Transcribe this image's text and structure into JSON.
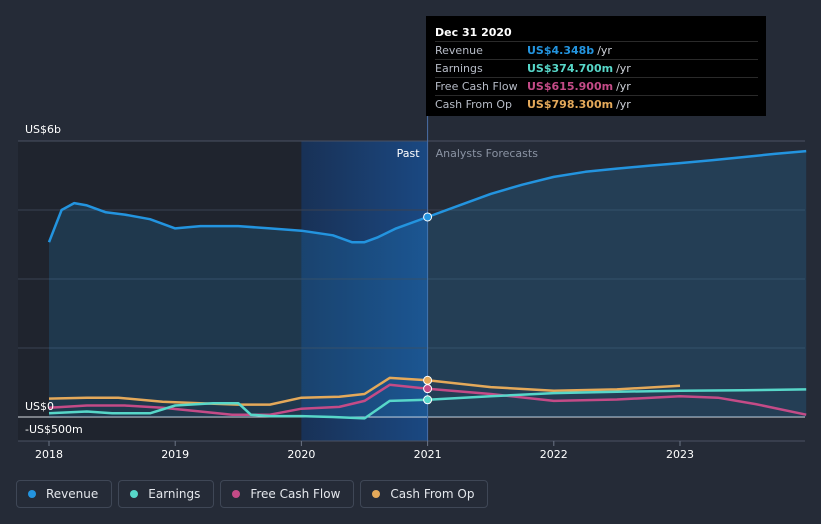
{
  "colors": {
    "revenue": "#2394df",
    "earnings": "#57d7c9",
    "free_cash_flow": "#c44b87",
    "cash_from_op": "#e4a95a"
  },
  "tooltip": {
    "title": "Dec 31 2020",
    "rows": [
      {
        "label": "Revenue",
        "value": "US$4.348b",
        "unit": "/yr",
        "color": "#2394df"
      },
      {
        "label": "Earnings",
        "value": "US$374.700m",
        "unit": "/yr",
        "color": "#57d7c9"
      },
      {
        "label": "Free Cash Flow",
        "value": "US$615.900m",
        "unit": "/yr",
        "color": "#c44b87"
      },
      {
        "label": "Cash From Op",
        "value": "US$798.300m",
        "unit": "/yr",
        "color": "#e4a95a"
      }
    ]
  },
  "legend": {
    "revenue": "Revenue",
    "earnings": "Earnings",
    "free_cash_flow": "Free Cash Flow",
    "cash_from_op": "Cash From Op"
  },
  "chart_data": {
    "type": "area",
    "y_unit": "US$ billions",
    "ylim": [
      -0.5,
      6
    ],
    "y_tick_labels": [
      {
        "value": 6,
        "label": "US$6b"
      },
      {
        "value": 0,
        "label": "US$0"
      },
      {
        "value": -0.5,
        "label": "-US$500m"
      }
    ],
    "x_ticks": [
      2018,
      2019,
      2020,
      2021,
      2022,
      2023
    ],
    "xlim": [
      2017.95,
      2024.0
    ],
    "grid": true,
    "regions": {
      "past_label": "Past",
      "forecast_label": "Analysts Forecasts",
      "divider_x": 2021.0,
      "highlight_start": 2020.0
    },
    "series": [
      {
        "name": "Revenue",
        "key": "revenue",
        "fill": true,
        "marker_x": 2021.0,
        "x": [
          2018.0,
          2018.1,
          2018.2,
          2018.3,
          2018.45,
          2018.6,
          2018.8,
          2019.0,
          2019.2,
          2019.5,
          2019.75,
          2020.0,
          2020.25,
          2020.4,
          2020.5,
          2020.6,
          2020.75,
          2021.0,
          2021.25,
          2021.5,
          2021.75,
          2022.0,
          2022.25,
          2022.5,
          2022.75,
          2023.0,
          2023.25,
          2023.5,
          2023.75,
          2024.0
        ],
        "y": [
          3.8,
          4.5,
          4.65,
          4.6,
          4.45,
          4.4,
          4.3,
          4.1,
          4.15,
          4.15,
          4.1,
          4.05,
          3.95,
          3.8,
          3.8,
          3.9,
          4.1,
          4.348,
          4.6,
          4.85,
          5.05,
          5.22,
          5.33,
          5.4,
          5.46,
          5.52,
          5.58,
          5.65,
          5.72,
          5.78
        ]
      },
      {
        "name": "Earnings",
        "key": "earnings",
        "fill": false,
        "marker_x": 2021.0,
        "x": [
          2018.0,
          2018.3,
          2018.5,
          2018.8,
          2019.0,
          2019.3,
          2019.5,
          2019.6,
          2019.75,
          2020.0,
          2020.25,
          2020.5,
          2020.7,
          2021.0,
          2021.5,
          2022.0,
          2022.5,
          2023.0,
          2023.5,
          2024.0
        ],
        "y": [
          0.08,
          0.12,
          0.08,
          0.08,
          0.25,
          0.3,
          0.3,
          0.05,
          0.02,
          0.02,
          0.0,
          -0.03,
          0.35,
          0.3747,
          0.45,
          0.52,
          0.55,
          0.57,
          0.58,
          0.6
        ]
      },
      {
        "name": "Free Cash Flow",
        "key": "free_cash_flow",
        "fill": false,
        "marker_x": 2021.0,
        "x": [
          2018.0,
          2018.3,
          2018.6,
          2018.9,
          2019.2,
          2019.45,
          2019.75,
          2020.0,
          2020.3,
          2020.5,
          2020.7,
          2021.0,
          2021.5,
          2022.0,
          2022.5,
          2023.0,
          2023.3,
          2023.6,
          2024.0
        ],
        "y": [
          0.2,
          0.25,
          0.25,
          0.2,
          0.12,
          0.05,
          0.05,
          0.18,
          0.22,
          0.35,
          0.7,
          0.6159,
          0.5,
          0.35,
          0.38,
          0.45,
          0.42,
          0.28,
          0.05
        ]
      },
      {
        "name": "Cash From Op",
        "key": "cash_from_op",
        "fill": false,
        "marker_x": 2021.0,
        "x": [
          2018.0,
          2018.3,
          2018.55,
          2018.9,
          2019.2,
          2019.5,
          2019.75,
          2020.0,
          2020.3,
          2020.5,
          2020.7,
          2021.0,
          2021.5,
          2022.0,
          2022.5,
          2023.0
        ],
        "y": [
          0.4,
          0.42,
          0.42,
          0.33,
          0.3,
          0.27,
          0.27,
          0.42,
          0.44,
          0.5,
          0.85,
          0.7983,
          0.65,
          0.57,
          0.6,
          0.68
        ]
      }
    ]
  }
}
